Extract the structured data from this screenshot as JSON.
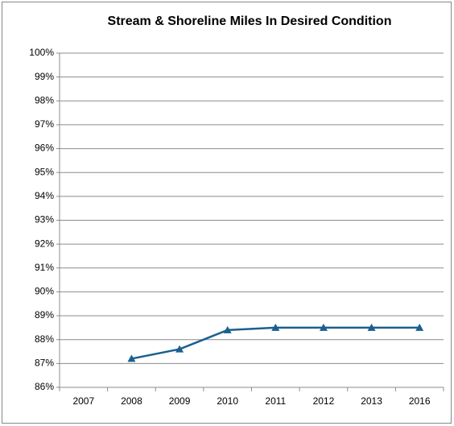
{
  "chart_data": {
    "type": "line",
    "title": "Stream & Shoreline Miles In Desired Condition",
    "categories": [
      "2007",
      "2008",
      "2009",
      "2010",
      "2011",
      "2012",
      "2013",
      "2016"
    ],
    "values": [
      null,
      87.2,
      87.6,
      88.4,
      88.5,
      88.5,
      88.5,
      88.5
    ],
    "color": "#1a6090",
    "marker": "triangle",
    "ylim": [
      86,
      100
    ],
    "yticks": [
      {
        "value": 86,
        "label": "86%"
      },
      {
        "value": 87,
        "label": "87%"
      },
      {
        "value": 88,
        "label": "88%"
      },
      {
        "value": 89,
        "label": "89%"
      },
      {
        "value": 90,
        "label": "90%"
      },
      {
        "value": 91,
        "label": "91%"
      },
      {
        "value": 92,
        "label": "92%"
      },
      {
        "value": 93,
        "label": "93%"
      },
      {
        "value": 94,
        "label": "94%"
      },
      {
        "value": 95,
        "label": "95%"
      },
      {
        "value": 96,
        "label": "96%"
      },
      {
        "value": 97,
        "label": "97%"
      },
      {
        "value": 98,
        "label": "98%"
      },
      {
        "value": 99,
        "label": "99%"
      },
      {
        "value": 100,
        "label": "100%"
      }
    ],
    "grid": true
  }
}
